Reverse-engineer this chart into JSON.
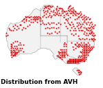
{
  "title": "Distribution from AVH",
  "title_fontsize": 6.5,
  "dot_color": "#cc0000",
  "dot_size": 1.5,
  "map_outline_color": "#999999",
  "map_fill_color": "#f2f2f2",
  "background_color": "#ffffff",
  "figsize": [
    1.5,
    1.28
  ],
  "dpi": 100,
  "lon_min": 113.0,
  "lon_max": 154.0,
  "lat_min": -44.0,
  "lat_max": -10.0
}
